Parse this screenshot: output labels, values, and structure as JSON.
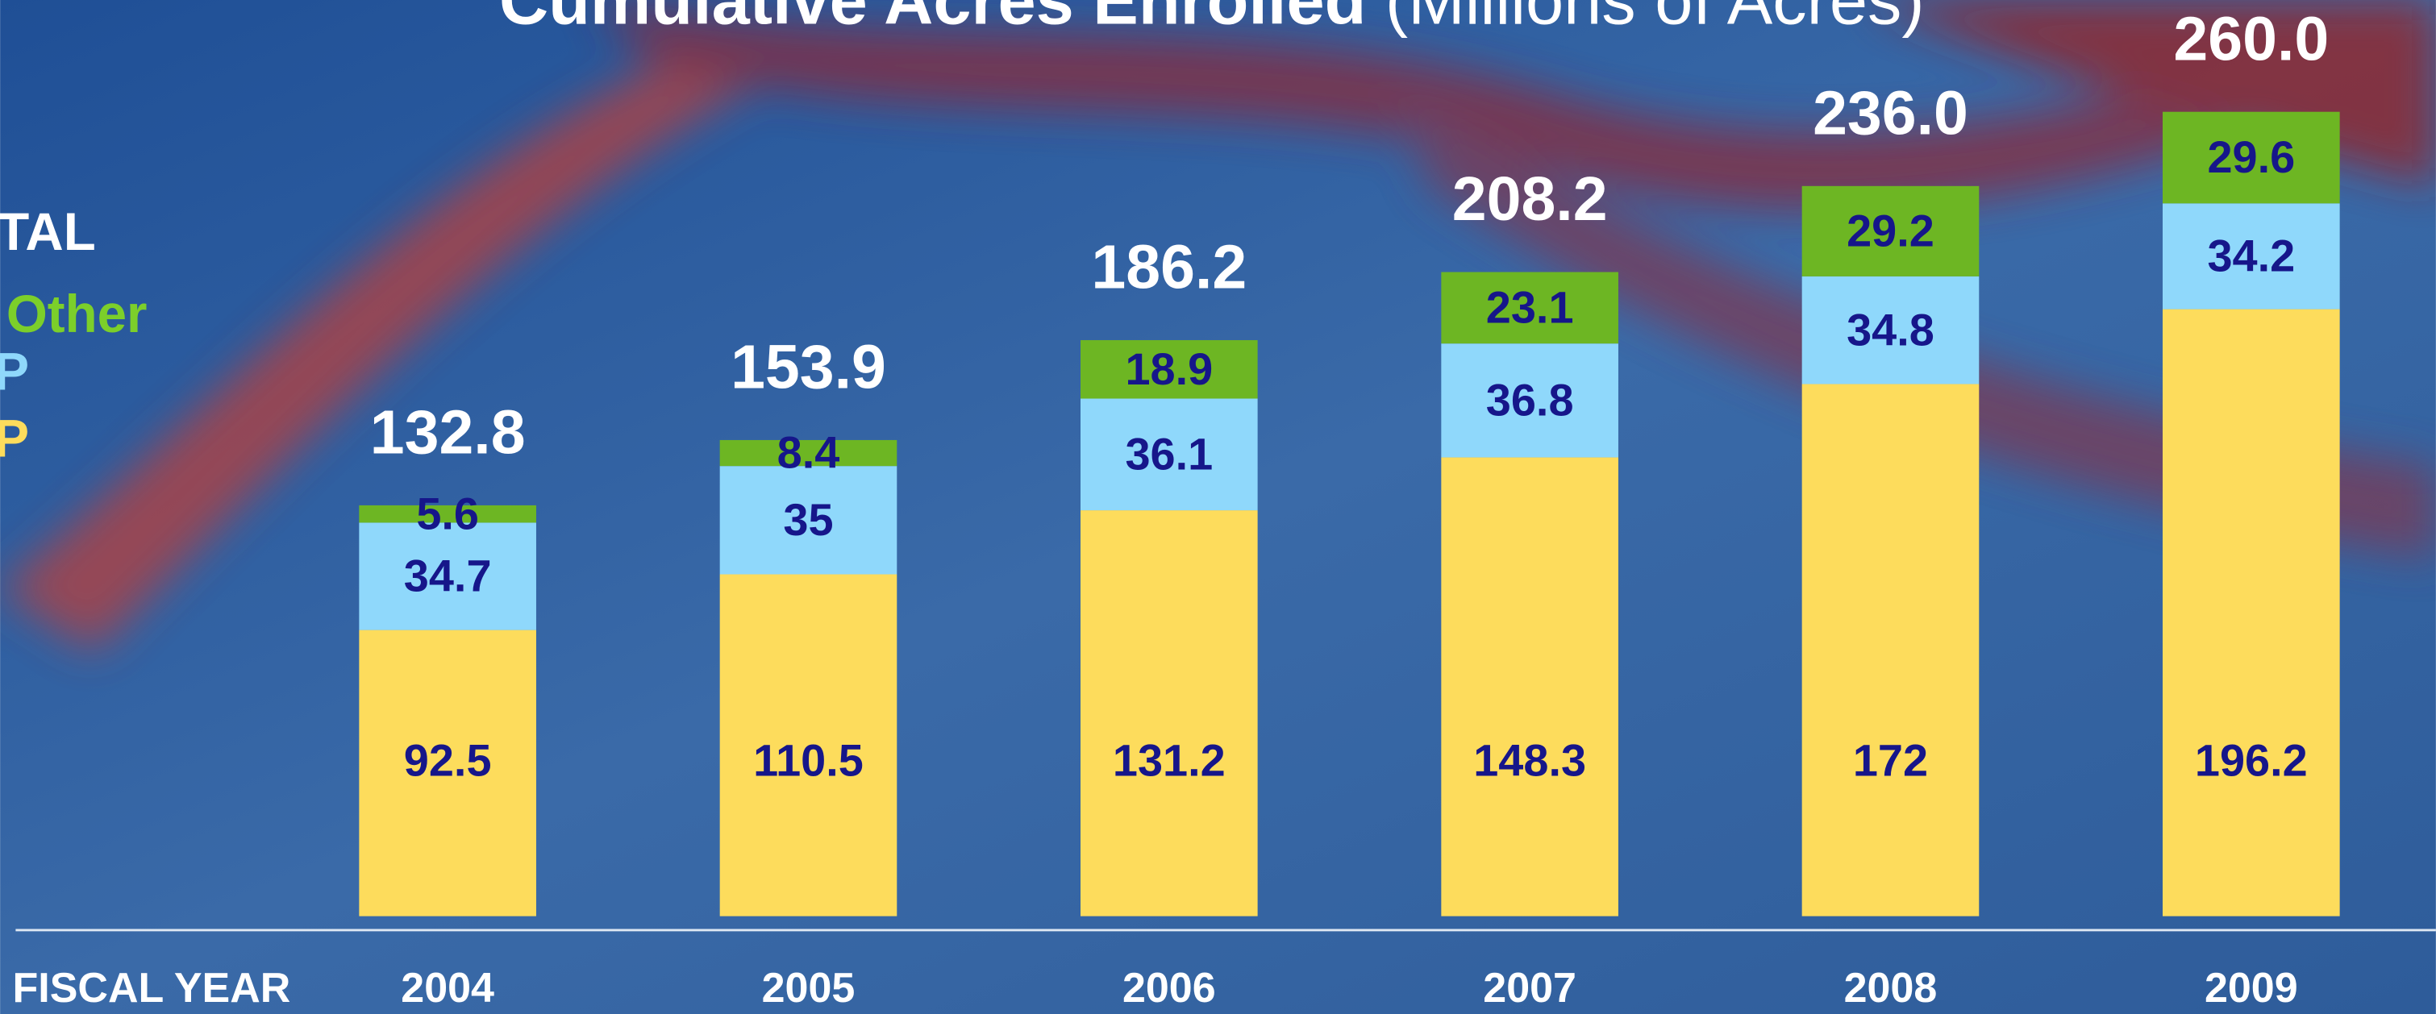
{
  "chart_data": {
    "type": "stacked_bar",
    "title": "Cumulative Acres Enrolled",
    "subtitle": "(Millions of Acres)",
    "legend_total": "TAL",
    "x_label": "FISCAL YEAR",
    "categories": [
      "2004",
      "2005",
      "2006",
      "2007",
      "2008",
      "2009"
    ],
    "series": [
      {
        "name": "P",
        "color": "#fddc5c",
        "label_color": "#fddc5c",
        "values": [
          92.5,
          110.5,
          131.2,
          148.3,
          172,
          196.2
        ]
      },
      {
        "name": "P",
        "color": "#8fd8fb",
        "label_color": "#8fd8fb",
        "values": [
          34.7,
          35,
          36.1,
          36.8,
          34.8,
          34.2
        ]
      },
      {
        "name": "Other",
        "color": "#6db623",
        "label_color": "#7ccf2a",
        "values": [
          5.6,
          8.4,
          18.9,
          23.1,
          29.2,
          29.6
        ]
      }
    ],
    "total_labels": [
      "132.8",
      "153.9",
      "186.2",
      "208.2",
      "236.0",
      "260.0"
    ],
    "ylim": [
      0,
      260
    ]
  }
}
